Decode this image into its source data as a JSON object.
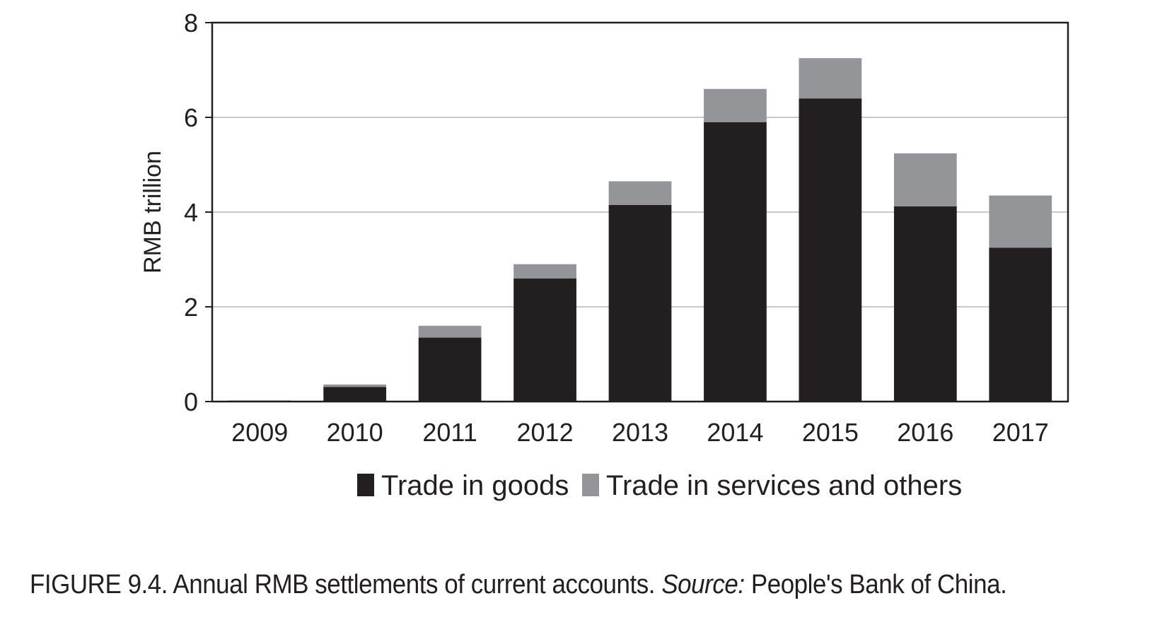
{
  "chart_data": {
    "type": "bar",
    "stacked": true,
    "categories": [
      "2009",
      "2010",
      "2011",
      "2012",
      "2013",
      "2014",
      "2015",
      "2016",
      "2017"
    ],
    "series": [
      {
        "name": "Trade in goods",
        "color": "#231f20",
        "values": [
          0.02,
          0.31,
          1.35,
          2.6,
          4.15,
          5.9,
          6.4,
          4.12,
          3.25
        ]
      },
      {
        "name": "Trade in services and others",
        "color": "#939598",
        "values": [
          0.0,
          0.05,
          0.25,
          0.3,
          0.5,
          0.7,
          0.85,
          1.12,
          1.1
        ]
      }
    ],
    "title": "",
    "xlabel": "",
    "ylabel": "RMB trillion",
    "ylim": [
      0,
      8
    ],
    "yticks": [
      0,
      2,
      4,
      6,
      8
    ],
    "grid": "horizontal",
    "legend_position": "bottom"
  },
  "caption": {
    "label": "FIGURE 9.4. Annual RMB settlements of current accounts.",
    "source_label": "Source:",
    "source_text": "People's Bank of China."
  }
}
